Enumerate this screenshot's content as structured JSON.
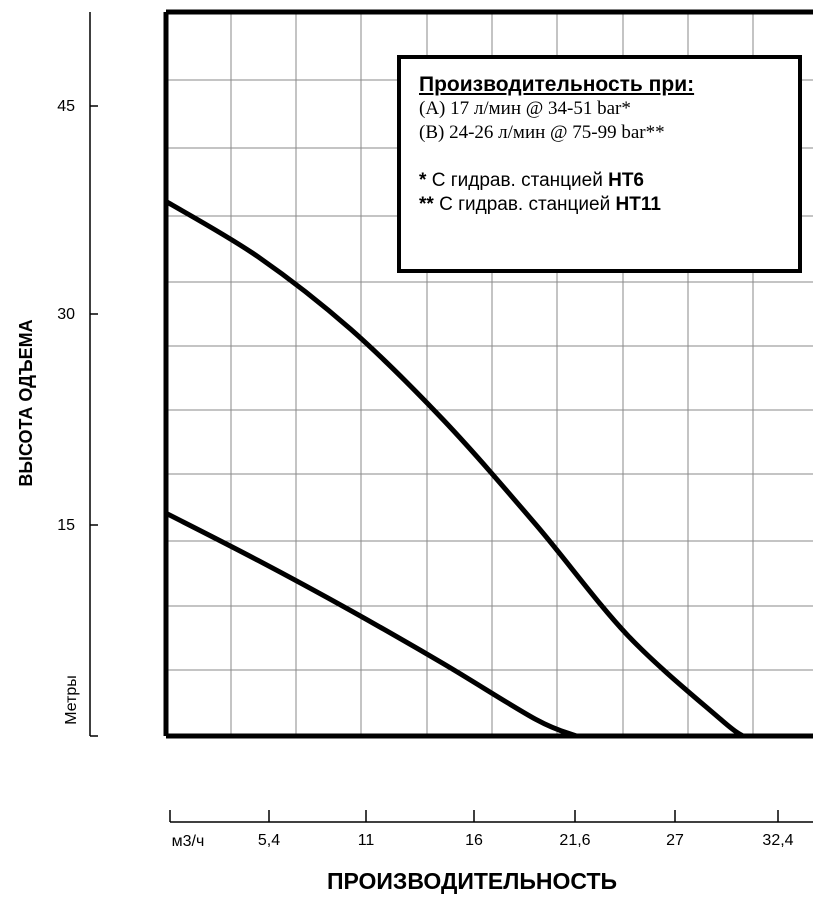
{
  "chart_data": {
    "type": "line",
    "ylabel": "ВЫСОТА ОДЪЕМА",
    "yunit": "Метры",
    "xlabel": "ПРОИЗВОДИТЕЛЬНОСТЬ",
    "xunit": "м3/ч",
    "ylim": [
      0,
      52
    ],
    "xlim": [
      0,
      35
    ],
    "yticks": [
      "45",
      "30",
      "15"
    ],
    "ytick_values": [
      45,
      30,
      15
    ],
    "xticks": [
      "5,4",
      "11",
      "16",
      "21,6",
      "27",
      "32,4"
    ],
    "xtick_values": [
      5.4,
      11,
      16,
      21.6,
      27,
      32.4
    ],
    "grid": true,
    "series": [
      {
        "x": [
          0,
          5,
          10,
          15,
          20,
          25,
          30,
          31.2
        ],
        "y": [
          38.4,
          34.4,
          29.2,
          22.7,
          15.2,
          7.2,
          1.2,
          0
        ]
      },
      {
        "x": [
          0,
          5,
          10,
          15,
          20,
          22.2
        ],
        "y": [
          16,
          12.6,
          9,
          5.2,
          1.2,
          0
        ]
      }
    ]
  },
  "legend": {
    "title": "Производительность при:",
    "line_a": "(A) 17 л/мин @ 34-51 bar*",
    "line_b": "(B) 24-26 л/мин @ 75-99 bar**",
    "note1_mark": "*",
    "note1_text": "С гидрав. станцией",
    "note1_bold": "HT6",
    "note2_mark": "**",
    "note2_text": "С гидрав. станцией",
    "note2_bold": "HT11"
  }
}
